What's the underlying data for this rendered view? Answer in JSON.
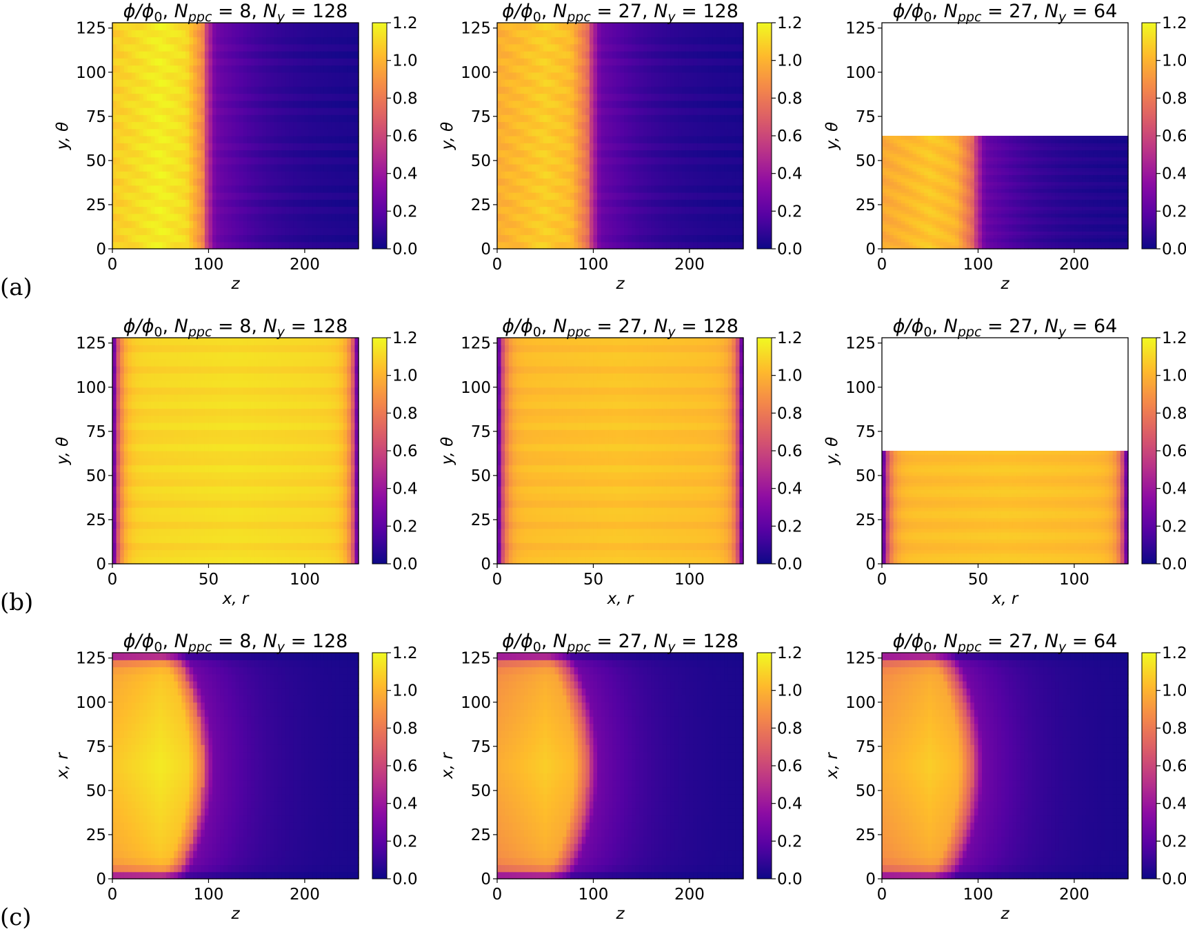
{
  "chart_data": {
    "type": "heatmap",
    "colormap": "plasma",
    "colorbar": {
      "min": 0.0,
      "max": 1.2,
      "ticks": [
        "0.0",
        "0.2",
        "0.4",
        "0.6",
        "0.8",
        "1.0",
        "1.2"
      ]
    },
    "rows": [
      {
        "label": "(a)",
        "panels": [
          {
            "title": "ϕ/ϕ0, Nppc = 8, Ny = 128",
            "title_parts": {
              "npp": "8",
              "ny": "128"
            },
            "xlabel": "z",
            "ylabel": "y, θ",
            "xlim": [
              0,
              256
            ],
            "ylim": [
              0,
              128
            ],
            "data_ymax": 128,
            "xticks": [
              "0",
              "100",
              "200"
            ],
            "yticks": [
              "0",
              "25",
              "50",
              "75",
              "100",
              "125"
            ],
            "field": {
              "profile": "front",
              "x_front": 95,
              "peak": 1.17,
              "peak_center": 50,
              "tail_start": 0.3,
              "tail_end": 0.02
            }
          },
          {
            "title": "ϕ/ϕ0, Nppc = 27, Ny = 128",
            "title_parts": {
              "npp": "27",
              "ny": "128"
            },
            "xlabel": "z",
            "ylabel": "y, θ",
            "xlim": [
              0,
              256
            ],
            "ylim": [
              0,
              128
            ],
            "data_ymax": 128,
            "xticks": [
              "0",
              "100",
              "200"
            ],
            "yticks": [
              "0",
              "25",
              "50",
              "75",
              "100",
              "125"
            ],
            "field": {
              "profile": "front",
              "x_front": 95,
              "peak": 1.08,
              "peak_center": 50,
              "tail_start": 0.28,
              "tail_end": 0.02
            }
          },
          {
            "title": "ϕ/ϕ0, Nppc = 27, Ny = 64",
            "title_parts": {
              "npp": "27",
              "ny": "64"
            },
            "xlabel": "z",
            "ylabel": "y, θ",
            "xlim": [
              0,
              256
            ],
            "ylim": [
              0,
              128
            ],
            "data_ymax": 64,
            "xticks": [
              "0",
              "100",
              "200"
            ],
            "yticks": [
              "0",
              "25",
              "50",
              "75",
              "100",
              "125"
            ],
            "field": {
              "profile": "front",
              "x_front": 95,
              "peak": 1.06,
              "peak_center": 50,
              "tail_start": 0.28,
              "tail_end": 0.02
            }
          }
        ]
      },
      {
        "label": "(b)",
        "panels": [
          {
            "title": "ϕ/ϕ0, Nppc = 8, Ny = 128",
            "title_parts": {
              "npp": "8",
              "ny": "128"
            },
            "xlabel": "x, r",
            "ylabel": "y, θ",
            "xlim": [
              0,
              128
            ],
            "ylim": [
              0,
              128
            ],
            "data_ymax": 128,
            "xticks": [
              "0",
              "50",
              "100"
            ],
            "yticks": [
              "0",
              "25",
              "50",
              "75",
              "100",
              "125"
            ],
            "field": {
              "profile": "walls",
              "plateau": 1.12,
              "edge_width": 3
            }
          },
          {
            "title": "ϕ/ϕ0, Nppc = 27, Ny = 128",
            "title_parts": {
              "npp": "27",
              "ny": "128"
            },
            "xlabel": "x, r",
            "ylabel": "y, θ",
            "xlim": [
              0,
              128
            ],
            "ylim": [
              0,
              128
            ],
            "data_ymax": 128,
            "xticks": [
              "0",
              "50",
              "100"
            ],
            "yticks": [
              "0",
              "25",
              "50",
              "75",
              "100",
              "125"
            ],
            "field": {
              "profile": "walls",
              "plateau": 1.05,
              "edge_width": 3
            }
          },
          {
            "title": "ϕ/ϕ0, Nppc = 27, Ny = 64",
            "title_parts": {
              "npp": "27",
              "ny": "64"
            },
            "xlabel": "x, r",
            "ylabel": "y, θ",
            "xlim": [
              0,
              128
            ],
            "ylim": [
              0,
              128
            ],
            "data_ymax": 64,
            "xticks": [
              "0",
              "50",
              "100"
            ],
            "yticks": [
              "0",
              "25",
              "50",
              "75",
              "100",
              "125"
            ],
            "field": {
              "profile": "walls",
              "plateau": 1.05,
              "edge_width": 3
            }
          }
        ]
      },
      {
        "label": "(c)",
        "panels": [
          {
            "title": "ϕ/ϕ0, Nppc = 8, Ny = 128",
            "title_parts": {
              "npp": "8",
              "ny": "128"
            },
            "xlabel": "z",
            "ylabel": "x, r",
            "xlim": [
              0,
              256
            ],
            "ylim": [
              0,
              128
            ],
            "data_ymax": 128,
            "xticks": [
              "0",
              "100",
              "200"
            ],
            "yticks": [
              "0",
              "25",
              "50",
              "75",
              "100",
              "125"
            ],
            "field": {
              "profile": "lens",
              "x_front": 95,
              "peak": 1.16,
              "tail_start": 0.3,
              "tail_end": 0.02,
              "edge_width": 3
            }
          },
          {
            "title": "ϕ/ϕ0, Nppc = 27, Ny = 128",
            "title_parts": {
              "npp": "27",
              "ny": "128"
            },
            "xlabel": "z",
            "ylabel": "x, r",
            "xlim": [
              0,
              256
            ],
            "ylim": [
              0,
              128
            ],
            "data_ymax": 128,
            "xticks": [
              "0",
              "100",
              "200"
            ],
            "yticks": [
              "0",
              "25",
              "50",
              "75",
              "100",
              "125"
            ],
            "field": {
              "profile": "lens",
              "x_front": 95,
              "peak": 1.08,
              "tail_start": 0.3,
              "tail_end": 0.02,
              "edge_width": 3
            }
          },
          {
            "title": "ϕ/ϕ0, Nppc = 27, Ny = 64",
            "title_parts": {
              "npp": "27",
              "ny": "64"
            },
            "xlabel": "z",
            "ylabel": "x, r",
            "xlim": [
              0,
              256
            ],
            "ylim": [
              0,
              128
            ],
            "data_ymax": 128,
            "xticks": [
              "0",
              "100",
              "200"
            ],
            "yticks": [
              "0",
              "25",
              "50",
              "75",
              "100",
              "125"
            ],
            "field": {
              "profile": "lens",
              "x_front": 95,
              "peak": 1.08,
              "tail_start": 0.3,
              "tail_end": 0.02,
              "edge_width": 3
            }
          }
        ]
      }
    ]
  }
}
